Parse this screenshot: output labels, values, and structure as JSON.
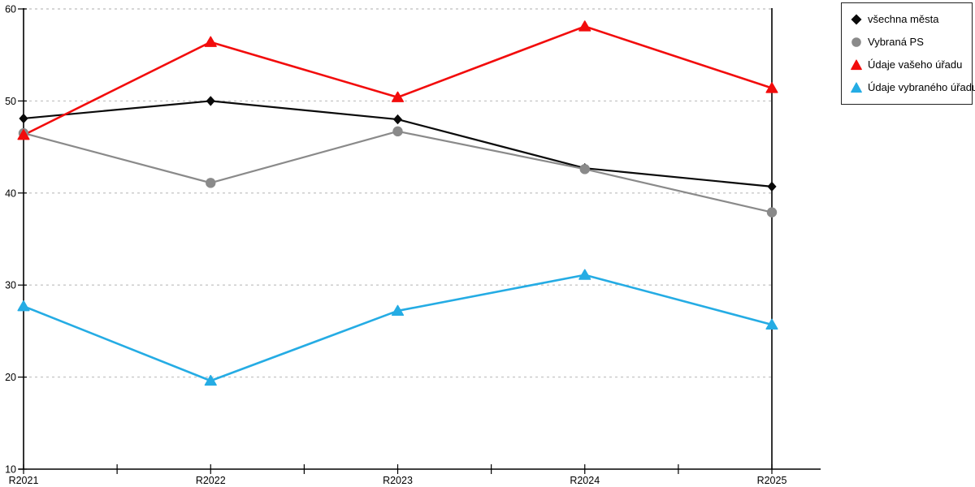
{
  "chart_data": {
    "type": "line",
    "title": "",
    "xlabel": "",
    "ylabel": "",
    "categories": [
      "R2021",
      "R2022",
      "R2023",
      "R2024",
      "R2025"
    ],
    "series": [
      {
        "name": "všechna města",
        "color": "#0a0a0a",
        "marker": "diamond",
        "values": [
          48.1,
          50.0,
          48.0,
          42.7,
          40.7
        ]
      },
      {
        "name": "Vybraná PS",
        "color": "#8a8a8a",
        "marker": "circle",
        "values": [
          46.5,
          41.1,
          46.7,
          42.6,
          37.9
        ]
      },
      {
        "name": "Údaje vašeho úřadu",
        "color": "#f20c0c",
        "marker": "triangle",
        "values": [
          46.3,
          56.4,
          50.4,
          58.1,
          51.4
        ]
      },
      {
        "name": "Údaje vybraného úřadu",
        "color": "#25ace4",
        "marker": "triangle",
        "values": [
          27.7,
          19.6,
          27.2,
          31.1,
          25.7
        ]
      }
    ],
    "ylim": [
      10,
      60
    ],
    "ytick_step": 10,
    "yticks": [
      10,
      20,
      30,
      40,
      50,
      60
    ],
    "grid": "horizontal-dashed",
    "grid_color": "#c8c8c8",
    "axis_color": "#000000",
    "legend_position": "top-right-outside"
  }
}
